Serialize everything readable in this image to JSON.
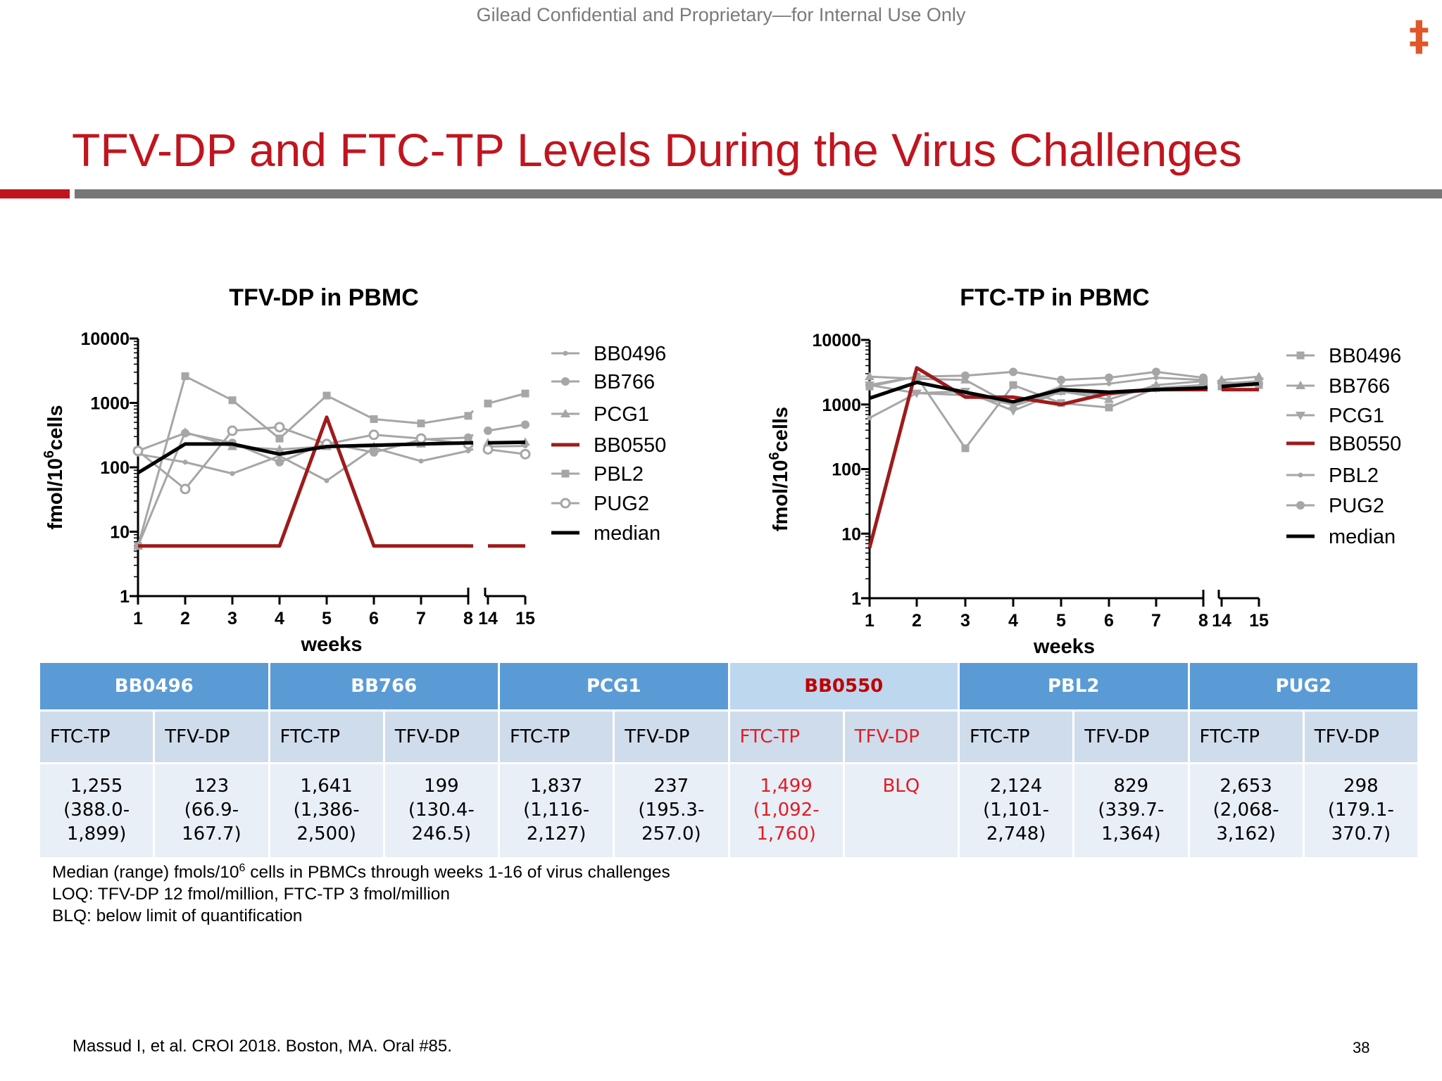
{
  "header": {
    "confidential": "Gilead Confidential and Proprietary—for Internal Use Only",
    "logo_icon": "double-dagger-icon",
    "logo_glyph": "‡",
    "title": "TFV-DP and FTC-TP Levels During the Virus Challenges",
    "accent_color": "#c0151f"
  },
  "chart_data": [
    {
      "type": "line",
      "title": "TFV-DP in PBMC",
      "xlabel": "weeks",
      "ylabel": "fmol/10",
      "ylabel_sup": "6",
      "ylabel_tail": "cells",
      "yscale": "log",
      "ylim": [
        1,
        10000
      ],
      "yticks": [
        "1",
        "10",
        "100",
        "1000",
        "10000"
      ],
      "x": [
        1,
        2,
        3,
        4,
        5,
        6,
        7,
        8,
        14,
        15
      ],
      "xticks": [
        "1",
        "2",
        "3",
        "4",
        "5",
        "6",
        "7",
        "8",
        "14",
        "15"
      ],
      "axis_break": "between 8 and 14",
      "series": [
        {
          "name": "BB0496",
          "marker": "small-circle",
          "color": "#a6a6a6",
          "values": [
            160,
            120,
            80,
            150,
            62,
            200,
            125,
            180,
            210,
            215
          ]
        },
        {
          "name": "BB766",
          "marker": "circle",
          "color": "#a6a6a6",
          "values": [
            180,
            340,
            240,
            120,
            240,
            170,
            270,
            290,
            370,
            460
          ]
        },
        {
          "name": "PCG1",
          "marker": "triangle",
          "color": "#a6a6a6",
          "values": [
            6,
            350,
            210,
            190,
            210,
            210,
            230,
            230,
            240,
            245
          ]
        },
        {
          "name": "BB0550",
          "marker": "none",
          "color": "#9e1b1b",
          "values": [
            6,
            6,
            6,
            6,
            600,
            6,
            6,
            6,
            6,
            6
          ]
        },
        {
          "name": "PBL2",
          "marker": "square",
          "color": "#a6a6a6",
          "values": [
            6,
            2600,
            1100,
            280,
            1300,
            560,
            480,
            630,
            980,
            1400
          ]
        },
        {
          "name": "PUG2",
          "marker": "open-circle",
          "color": "#a6a6a6",
          "values": [
            180,
            46,
            370,
            420,
            230,
            320,
            280,
            230,
            190,
            160
          ]
        },
        {
          "name": "median",
          "marker": "none",
          "color": "#000000",
          "values": [
            82,
            230,
            230,
            160,
            210,
            220,
            230,
            240,
            240,
            245
          ]
        }
      ]
    },
    {
      "type": "line",
      "title": "FTC-TP in PBMC",
      "xlabel": "weeks",
      "ylabel": "fmol/10",
      "ylabel_sup": "6",
      "ylabel_tail": "cells",
      "yscale": "log",
      "ylim": [
        1,
        10000
      ],
      "yticks": [
        "1",
        "10",
        "100",
        "1000",
        "10000"
      ],
      "x": [
        1,
        2,
        3,
        4,
        5,
        6,
        7,
        8,
        14,
        15
      ],
      "xticks": [
        "1",
        "2",
        "3",
        "4",
        "5",
        "6",
        "7",
        "8",
        "14",
        "15"
      ],
      "axis_break": "between 8 and 14",
      "series": [
        {
          "name": "BB0496",
          "marker": "square",
          "color": "#a6a6a6",
          "values": [
            1900,
            2700,
            210,
            2000,
            1050,
            900,
            1800,
            1900,
            1900,
            2000
          ]
        },
        {
          "name": "BB766",
          "marker": "triangle",
          "color": "#a6a6a6",
          "values": [
            2700,
            2500,
            2400,
            950,
            1600,
            1200,
            2000,
            2300,
            2400,
            2700
          ]
        },
        {
          "name": "PCG1",
          "marker": "inverted-triangle",
          "color": "#a6a6a6",
          "values": [
            2000,
            1500,
            1600,
            800,
            1600,
            1400,
            1800,
            2000,
            2100,
            2300
          ]
        },
        {
          "name": "BB0550",
          "marker": "none",
          "color": "#9e1b1b",
          "values": [
            6,
            3700,
            1300,
            1300,
            1000,
            1500,
            1700,
            1700,
            1700,
            1700
          ]
        },
        {
          "name": "PBL2",
          "marker": "small-circle",
          "color": "#a6a6a6",
          "values": [
            620,
            1500,
            1400,
            1000,
            1900,
            2100,
            2600,
            2400,
            2200,
            2100
          ]
        },
        {
          "name": "PUG2",
          "marker": "circle",
          "color": "#a6a6a6",
          "values": [
            2000,
            2700,
            2800,
            3200,
            2400,
            2600,
            3200,
            2600,
            2200,
            2100
          ]
        },
        {
          "name": "median",
          "marker": "none",
          "color": "#000000",
          "values": [
            1250,
            2200,
            1550,
            1100,
            1700,
            1550,
            1700,
            1800,
            1900,
            2100
          ]
        }
      ]
    }
  ],
  "table": {
    "groups": [
      {
        "name": "BB0496",
        "highlight": false,
        "cols": [
          {
            "label": "FTC-TP",
            "median": "1,255",
            "r1": "(388.0-",
            "r2": "1,899)"
          },
          {
            "label": "TFV-DP",
            "median": "123",
            "r1": "(66.9-",
            "r2": "167.7)"
          }
        ]
      },
      {
        "name": "BB766",
        "highlight": false,
        "cols": [
          {
            "label": "FTC-TP",
            "median": "1,641",
            "r1": "(1,386-",
            "r2": "2,500)"
          },
          {
            "label": "TFV-DP",
            "median": "199",
            "r1": "(130.4-",
            "r2": "246.5)"
          }
        ]
      },
      {
        "name": "PCG1",
        "highlight": false,
        "cols": [
          {
            "label": "FTC-TP",
            "median": "1,837",
            "r1": "(1,116-",
            "r2": "2,127)"
          },
          {
            "label": "TFV-DP",
            "median": "237",
            "r1": "(195.3-",
            "r2": "257.0)"
          }
        ]
      },
      {
        "name": "BB0550",
        "highlight": true,
        "cols": [
          {
            "label": "FTC-TP",
            "median": "1,499",
            "r1": "(1,092-",
            "r2": "1,760)"
          },
          {
            "label": "TFV-DP",
            "median": "BLQ",
            "r1": "",
            "r2": ""
          }
        ]
      },
      {
        "name": "PBL2",
        "highlight": false,
        "cols": [
          {
            "label": "FTC-TP",
            "median": "2,124",
            "r1": "(1,101-",
            "r2": "2,748)"
          },
          {
            "label": "TFV-DP",
            "median": "829",
            "r1": "(339.7-",
            "r2": "1,364)"
          }
        ]
      },
      {
        "name": "PUG2",
        "highlight": false,
        "cols": [
          {
            "label": "FTC-TP",
            "median": "2,653",
            "r1": "(2,068-",
            "r2": "3,162)"
          },
          {
            "label": "TFV-DP",
            "median": "298",
            "r1": "(179.1-",
            "r2": "370.7)"
          }
        ]
      }
    ]
  },
  "notes": {
    "line1_pre": "Median (range) fmols/10",
    "line1_sup": "6",
    "line1_post": " cells in PBMCs through weeks 1-16 of virus challenges",
    "line2": "LOQ: TFV-DP 12 fmol/million, FTC-TP 3 fmol/million",
    "line3": "BLQ: below limit of quantification"
  },
  "footer": {
    "citation": "Massud I, et al. CROI 2018. Boston, MA. Oral #85.",
    "page_number": "38"
  }
}
